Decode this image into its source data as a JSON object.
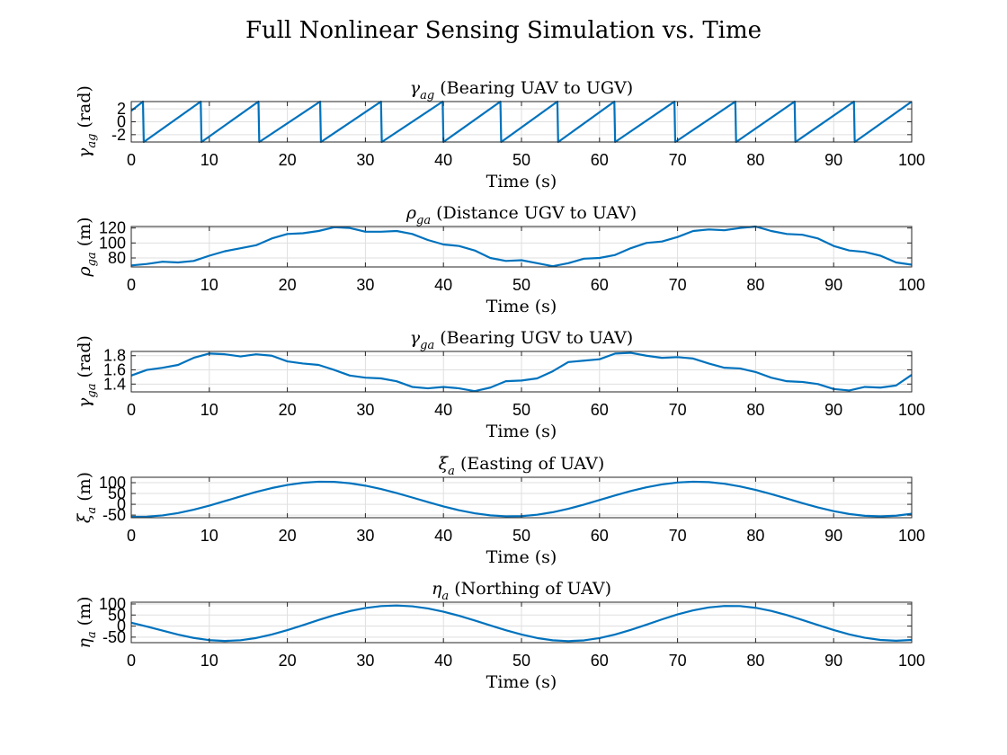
{
  "figure": {
    "title": "Full Nonlinear Sensing Simulation vs. Time"
  },
  "colors": {
    "line": "#0072BD",
    "axis": "#262626",
    "grid": "#dfdfdf",
    "background": "#ffffff"
  },
  "chart_data": [
    {
      "type": "line",
      "title": "γ_ag (Bearing UAV to UGV)",
      "title_sym": "γ",
      "title_sub": "ag",
      "title_rest": " (Bearing UAV to UGV)",
      "ylabel_sym": "γ",
      "ylabel_sub": "ag",
      "ylabel_rest": " (rad)",
      "xlabel": "Time (s)",
      "xlim": [
        0,
        100
      ],
      "ylim": [
        -3.14,
        3.14
      ],
      "xticks": [
        0,
        10,
        20,
        30,
        40,
        50,
        60,
        70,
        80,
        90,
        100
      ],
      "yticks": [
        -2,
        0,
        2
      ],
      "ytick_labels": [
        "-2",
        "0",
        "2"
      ],
      "grid": true,
      "series": [
        {
          "x": [
            0,
            1.5,
            1.6,
            8.9,
            9.0,
            16.3,
            16.4,
            24.2,
            24.3,
            32.0,
            32.1,
            39.9,
            40.0,
            47.3,
            47.4,
            54.6,
            54.7,
            61.9,
            62.0,
            69.6,
            69.7,
            77.4,
            77.5,
            85.0,
            85.1,
            92.6,
            92.7,
            100
          ],
          "y": [
            1.7,
            3.14,
            -3.14,
            3.14,
            -3.14,
            3.14,
            -3.14,
            3.14,
            -3.14,
            3.14,
            -3.14,
            3.14,
            -3.14,
            3.14,
            -3.14,
            3.14,
            -3.14,
            3.14,
            -3.14,
            3.14,
            -3.14,
            3.14,
            -3.14,
            3.14,
            -3.14,
            3.14,
            -3.14,
            3.14
          ]
        }
      ]
    },
    {
      "type": "line",
      "title": "ρ_ga (Distance UGV to UAV)",
      "title_sym": "ρ",
      "title_sub": "ga",
      "title_rest": " (Distance UGV to UAV)",
      "ylabel_sym": "ρ",
      "ylabel_sub": "ga",
      "ylabel_rest": " (m)",
      "xlabel": "Time (s)",
      "xlim": [
        0,
        100
      ],
      "ylim": [
        68,
        122
      ],
      "xticks": [
        0,
        10,
        20,
        30,
        40,
        50,
        60,
        70,
        80,
        90,
        100
      ],
      "yticks": [
        80,
        100,
        120
      ],
      "ytick_labels": [
        "80",
        "100",
        "120"
      ],
      "grid": true,
      "series": [
        {
          "x": [
            0,
            2,
            4,
            6,
            8,
            10,
            12,
            14,
            16,
            18,
            20,
            22,
            24,
            26,
            28,
            30,
            32,
            34,
            36,
            38,
            40,
            42,
            44,
            46,
            48,
            50,
            52,
            54,
            56,
            58,
            60,
            62,
            64,
            66,
            68,
            70,
            72,
            74,
            76,
            78,
            80,
            82,
            84,
            86,
            88,
            90,
            92,
            94,
            96,
            98,
            100
          ],
          "y": [
            70,
            72,
            75,
            74,
            76,
            83,
            89,
            93,
            97,
            106,
            112,
            113,
            116,
            121,
            120,
            115,
            115,
            116,
            112,
            104,
            98,
            96,
            90,
            80,
            76,
            77,
            73,
            69,
            73,
            79,
            80,
            84,
            93,
            100,
            102,
            108,
            116,
            118,
            117,
            120,
            122,
            116,
            112,
            111,
            106,
            96,
            90,
            88,
            83,
            74,
            71
          ]
        }
      ]
    },
    {
      "type": "line",
      "title": "γ_ga (Bearing UGV to UAV)",
      "title_sym": "γ",
      "title_sub": "ga",
      "title_rest": " (Bearing UGV to UAV)",
      "ylabel_sym": "γ",
      "ylabel_sub": "ga",
      "ylabel_rest": " (rad)",
      "xlabel": "Time (s)",
      "xlim": [
        0,
        100
      ],
      "ylim": [
        1.29,
        1.86
      ],
      "xticks": [
        0,
        10,
        20,
        30,
        40,
        50,
        60,
        70,
        80,
        90,
        100
      ],
      "yticks": [
        1.4,
        1.6,
        1.8
      ],
      "ytick_labels": [
        "1.4",
        "1.6",
        "1.8"
      ],
      "grid": true,
      "series": [
        {
          "x": [
            0,
            2,
            4,
            6,
            8,
            10,
            12,
            14,
            16,
            18,
            20,
            22,
            24,
            26,
            28,
            30,
            32,
            34,
            36,
            38,
            40,
            42,
            44,
            46,
            48,
            50,
            52,
            54,
            56,
            58,
            60,
            62,
            64,
            66,
            68,
            70,
            72,
            74,
            76,
            78,
            80,
            82,
            84,
            86,
            88,
            90,
            92,
            94,
            96,
            98,
            100
          ],
          "y": [
            1.52,
            1.6,
            1.63,
            1.67,
            1.77,
            1.83,
            1.82,
            1.79,
            1.82,
            1.8,
            1.72,
            1.69,
            1.67,
            1.6,
            1.52,
            1.49,
            1.48,
            1.44,
            1.36,
            1.34,
            1.36,
            1.34,
            1.3,
            1.35,
            1.44,
            1.45,
            1.48,
            1.58,
            1.71,
            1.73,
            1.75,
            1.83,
            1.84,
            1.8,
            1.77,
            1.78,
            1.76,
            1.69,
            1.63,
            1.62,
            1.57,
            1.49,
            1.44,
            1.43,
            1.4,
            1.33,
            1.31,
            1.36,
            1.35,
            1.38,
            1.53
          ]
        }
      ]
    },
    {
      "type": "line",
      "title": "ξ_a (Easting of UAV)",
      "title_sym": "ξ",
      "title_sub": "a",
      "title_rest": " (Easting of UAV)",
      "ylabel_sym": "ξ",
      "ylabel_sub": "a",
      "ylabel_rest": " (m)",
      "xlabel": "Time (s)",
      "xlim": [
        0,
        100
      ],
      "ylim": [
        -62,
        125
      ],
      "xticks": [
        0,
        10,
        20,
        30,
        40,
        50,
        60,
        70,
        80,
        90,
        100
      ],
      "yticks": [
        -50,
        0,
        50,
        100
      ],
      "ytick_labels": [
        "-50",
        "0",
        "50",
        "100"
      ],
      "grid": true,
      "series": [
        {
          "x": [
            0,
            2,
            4,
            6,
            8,
            10,
            12,
            14,
            16,
            18,
            20,
            22,
            24,
            26,
            28,
            30,
            32,
            34,
            36,
            38,
            40,
            42,
            44,
            46,
            48,
            50,
            52,
            54,
            56,
            58,
            60,
            62,
            64,
            66,
            68,
            70,
            72,
            74,
            76,
            78,
            80,
            82,
            84,
            86,
            88,
            90,
            92,
            94,
            96,
            98,
            100
          ],
          "y": [
            -57.6,
            -57.0,
            -51.3,
            -40.4,
            -25.0,
            -6.1,
            14.9,
            36.5,
            57.0,
            75.1,
            89.5,
            99.5,
            104.4,
            103.6,
            97.4,
            86.1,
            70.6,
            52.0,
            31.5,
            10.4,
            -9.8,
            -27.5,
            -41.5,
            -51.1,
            -55.5,
            -54.6,
            -48.2,
            -36.6,
            -20.8,
            -1.5,
            19.7,
            41.1,
            61.2,
            78.6,
            92.1,
            100.9,
            104.5,
            102.6,
            95.2,
            82.7,
            66.4,
            47.2,
            26.5,
            5.4,
            -14.6,
            -31.7,
            -44.9,
            -53.2,
            -55.9,
            -52.7,
            -43.9
          ]
        }
      ]
    },
    {
      "type": "line",
      "title": "η_a (Northing of UAV)",
      "title_sym": "η",
      "title_sub": "a",
      "title_rest": " (Northing of UAV)",
      "ylabel_sym": "η",
      "ylabel_sub": "a",
      "ylabel_rest": " (m)",
      "xlabel": "Time (s)",
      "xlim": [
        0,
        100
      ],
      "ylim": [
        -75,
        108
      ],
      "xticks": [
        0,
        10,
        20,
        30,
        40,
        50,
        60,
        70,
        80,
        90,
        100
      ],
      "yticks": [
        -50,
        0,
        50,
        100
      ],
      "ytick_labels": [
        "-50",
        "0",
        "50",
        "100"
      ],
      "grid": true,
      "series": [
        {
          "x": [
            0,
            2,
            4,
            6,
            8,
            10,
            12,
            14,
            16,
            18,
            20,
            22,
            24,
            26,
            28,
            30,
            32,
            34,
            36,
            38,
            40,
            42,
            44,
            46,
            48,
            50,
            52,
            54,
            56,
            58,
            60,
            62,
            64,
            66,
            68,
            70,
            72,
            74,
            76,
            78,
            80,
            82,
            84,
            86,
            88,
            90,
            92,
            94,
            96,
            98,
            100
          ],
          "y": [
            15.0,
            -1.9,
            -20.6,
            -38.7,
            -53.7,
            -63.7,
            -67.4,
            -64.1,
            -54.1,
            -38.3,
            -18.3,
            4.2,
            27.3,
            49.2,
            67.8,
            81.9,
            90.5,
            93.0,
            89.4,
            79.8,
            65.2,
            46.6,
            25.5,
            3.2,
            -18.7,
            -38.3,
            -54.1,
            -64.4,
            -68.1,
            -64.7,
            -54.3,
            -38.0,
            -17.2,
            6.2,
            30.3,
            52.7,
            71.3,
            84.4,
            91.0,
            90.4,
            82.7,
            68.6,
            49.6,
            27.5,
            4.4,
            -17.9,
            -37.6,
            -53.0,
            -62.9,
            -66.2,
            -62.7
          ]
        }
      ]
    }
  ]
}
